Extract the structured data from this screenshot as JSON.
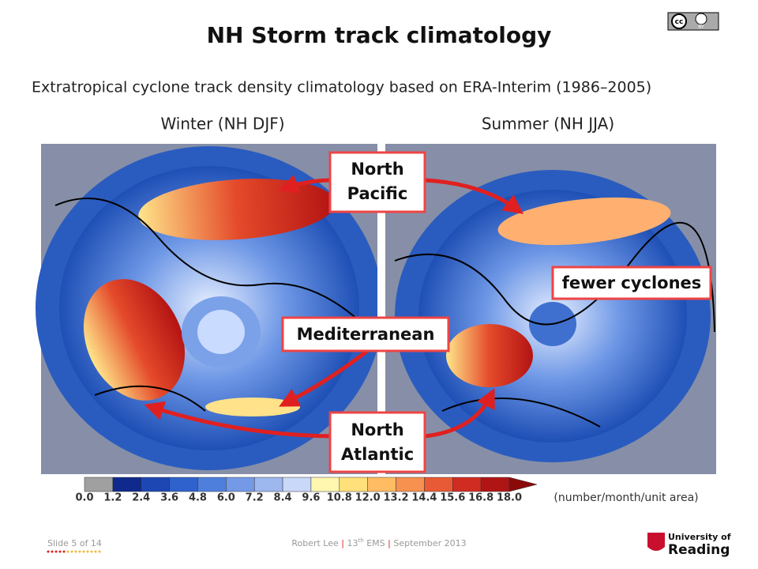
{
  "header": {
    "title": "NH Storm track climatology",
    "subtitle": "Extratropical cyclone track density climatology based on ERA-Interim (1986–2005)",
    "license": {
      "icon": "cc",
      "label": "BY"
    }
  },
  "panels": [
    {
      "label": "Winter (NH DJF)"
    },
    {
      "label": "Summer (NH JJA)"
    }
  ],
  "callouts": {
    "north_pacific": [
      "North",
      "Pacific"
    ],
    "fewer_cyclones": "fewer cyclones",
    "mediterranean": "Mediterranean",
    "north_atlantic": [
      "North",
      "Atlantic"
    ]
  },
  "colorbar": {
    "ticks": [
      "0.0",
      "1.2",
      "2.4",
      "3.6",
      "4.8",
      "6.0",
      "7.2",
      "8.4",
      "9.6",
      "10.8",
      "12.0",
      "13.2",
      "14.4",
      "15.6",
      "16.8",
      "18.0"
    ],
    "unit": "(number/month/unit area)"
  },
  "footer": {
    "slide": "Slide 5 of 14",
    "author": "Robert Lee",
    "sep1": "|",
    "edition": "13",
    "edition_suffix": "th",
    "event": "EMS",
    "sep2": "|",
    "date": "September 2013",
    "logo": [
      "University of",
      "Reading"
    ]
  }
}
